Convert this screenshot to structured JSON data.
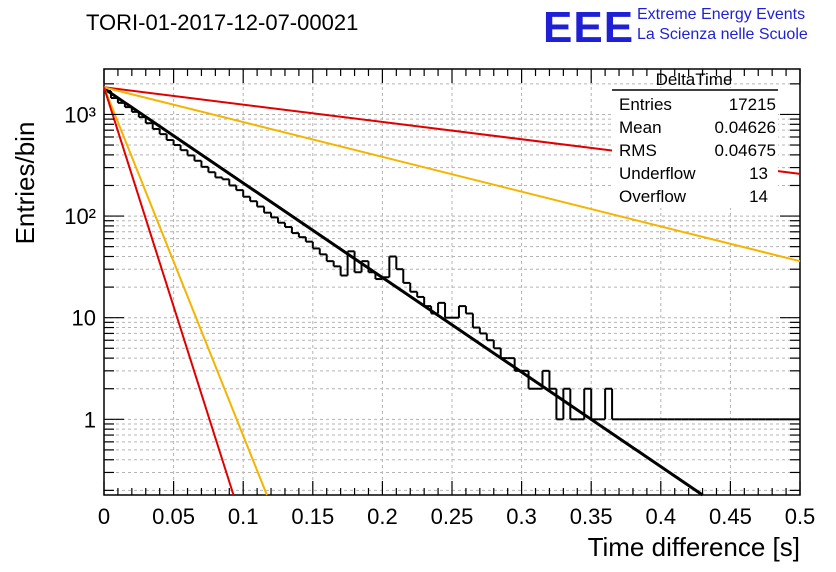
{
  "header": {
    "run_title": "TORI-01-2017-12-07-00021",
    "logo_letters": "EEE",
    "logo_line1": "Extreme Energy Events",
    "logo_line2": "La Scienza nelle Scuole"
  },
  "stats": {
    "name": "DeltaTime",
    "rows": [
      {
        "label": "Entries",
        "value": "17215"
      },
      {
        "label": "Mean",
        "value": "0.04626"
      },
      {
        "label": "RMS",
        "value": "0.04675"
      },
      {
        "label": "Underflow",
        "value": "13"
      },
      {
        "label": "Overflow",
        "value": "14"
      }
    ]
  },
  "colors": {
    "histogram": "#000000",
    "fit": "#000000",
    "red": "#e00000",
    "orange": "#f5b400",
    "grid": "#b4b4b4"
  },
  "chart_data": {
    "type": "line",
    "xlabel": "Time difference [s]",
    "ylabel": "Entries/bin",
    "xlim": [
      0,
      0.5
    ],
    "ylim": [
      0.18,
      2800
    ],
    "yscale": "log",
    "grid": true,
    "x_ticks": [
      "0",
      "0.05",
      "0.1",
      "0.15",
      "0.2",
      "0.25",
      "0.3",
      "0.35",
      "0.4",
      "0.45",
      "0.5"
    ],
    "y_ticks": [
      {
        "value": 1,
        "label": "1"
      },
      {
        "value": 10,
        "label": "10"
      },
      {
        "value": 100,
        "label": "10²"
      },
      {
        "value": 1000,
        "label": "10³"
      }
    ],
    "histogram": {
      "bin_width": 0.005,
      "counts": [
        1700,
        1450,
        1300,
        1180,
        1060,
        940,
        820,
        720,
        640,
        560,
        500,
        445,
        395,
        350,
        305,
        270,
        240,
        230,
        200,
        180,
        155,
        140,
        124,
        108,
        97,
        86,
        78,
        68,
        62,
        56,
        48,
        42,
        36,
        32,
        26,
        45,
        28,
        36,
        28,
        24,
        25,
        40,
        30,
        22,
        18,
        16,
        13,
        11,
        14,
        10,
        10,
        13,
        11,
        8,
        7,
        6,
        5,
        4,
        4,
        3,
        3,
        2,
        2,
        3,
        2,
        1,
        2,
        1,
        1,
        2,
        1,
        1,
        2,
        1,
        1,
        1,
        1,
        1,
        1,
        1,
        1,
        1,
        1,
        1,
        1,
        1,
        1,
        1,
        1,
        1,
        1,
        1,
        1,
        1,
        1,
        1,
        1,
        1,
        1,
        1
      ]
    },
    "series": [
      {
        "color": "black",
        "x": [
          0,
          0.43
        ],
        "y": [
          1800,
          0.18
        ]
      },
      {
        "color": "red",
        "x": [
          0,
          0.5
        ],
        "y": [
          1850,
          260
        ]
      },
      {
        "color": "orange",
        "x": [
          0,
          0.5
        ],
        "y": [
          1850,
          36
        ]
      },
      {
        "color": "orange",
        "x": [
          0,
          0.117
        ],
        "y": [
          1850,
          0.18
        ]
      },
      {
        "color": "red",
        "x": [
          0,
          0.093
        ],
        "y": [
          1850,
          0.18
        ]
      }
    ]
  }
}
